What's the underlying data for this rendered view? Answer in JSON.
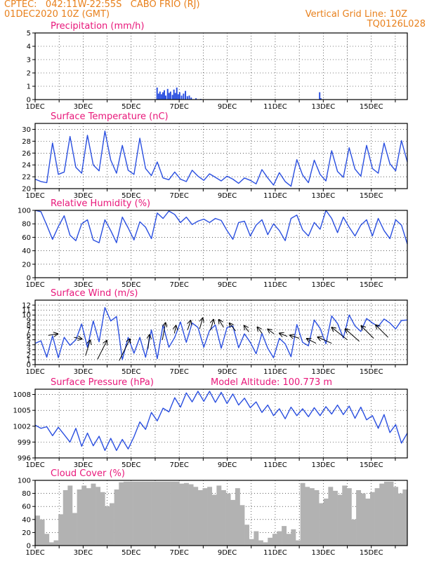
{
  "header": {
    "line1_left": "CPTEC:   042:11W-22:55S   CABO FRIO (RJ)",
    "line2_left": "01DEC2020 10Z (GMT)",
    "line2_right": "Vertical Grid Line: 10Z",
    "line3_right": "TQ0126L028",
    "model_altitude": "Model Altitude: 100.773 m"
  },
  "colors": {
    "line": "#2a4fe0",
    "bar": "#2a4fe0",
    "title": "#e8177a",
    "header": "#e8801c",
    "cloud": "#b2b2b2",
    "arrow": "#000000"
  },
  "x_tick_labels": [
    "1DEC",
    "3DEC",
    "5DEC",
    "7DEC",
    "9DEC",
    "11DEC",
    "13DEC",
    "15DEC"
  ],
  "chart_data": [
    {
      "type": "bar",
      "title": "Precipitation (mm/h)",
      "ylim": [
        0,
        5
      ],
      "yticks": [
        0,
        1,
        2,
        3,
        4,
        5
      ],
      "x_range_days": [
        0,
        15.5
      ],
      "events": [
        [
          5.08,
          0.9
        ],
        [
          5.14,
          0.45
        ],
        [
          5.2,
          0.6
        ],
        [
          5.26,
          0.4
        ],
        [
          5.32,
          0.55
        ],
        [
          5.38,
          0.7
        ],
        [
          5.44,
          0.3
        ],
        [
          5.52,
          0.8
        ],
        [
          5.58,
          0.5
        ],
        [
          5.64,
          0.6
        ],
        [
          5.72,
          0.35
        ],
        [
          5.78,
          0.75
        ],
        [
          5.84,
          0.5
        ],
        [
          5.9,
          0.9
        ],
        [
          5.96,
          0.4
        ],
        [
          6.02,
          0.55
        ],
        [
          6.1,
          0.3
        ],
        [
          6.18,
          0.45
        ],
        [
          6.26,
          0.65
        ],
        [
          6.34,
          0.25
        ],
        [
          6.42,
          0.3
        ],
        [
          6.5,
          0.15
        ],
        [
          6.7,
          0.1
        ],
        [
          6.9,
          0.05
        ],
        [
          11.85,
          0.55
        ],
        [
          11.9,
          0.1
        ]
      ]
    },
    {
      "type": "line",
      "title": "Surface Temperature (nC)",
      "ylim": [
        20,
        31
      ],
      "yticks": [
        20,
        22,
        24,
        26,
        28,
        30
      ],
      "series": [
        {
          "values": [
            21.6,
            21.2,
            21.0,
            27.7,
            22.4,
            22.8,
            28.8,
            23.6,
            22.6,
            29.0,
            24.0,
            23.0,
            29.7,
            24.8,
            22.6,
            27.3,
            23.1,
            22.4,
            28.5,
            23.4,
            22.2,
            24.5,
            21.8,
            21.5,
            22.8,
            21.6,
            21.2,
            23.1,
            22.1,
            21.4,
            22.5,
            21.9,
            21.3,
            22.1,
            21.6,
            20.9,
            21.8,
            21.4,
            20.8,
            23.2,
            21.8,
            20.6,
            22.7,
            21.2,
            20.4,
            24.9,
            22.3,
            21.0,
            24.8,
            22.4,
            21.3,
            26.4,
            22.9,
            21.9,
            26.9,
            23.3,
            22.1,
            27.3,
            23.4,
            22.6,
            27.7,
            24.2,
            23.0,
            28.1,
            24.5
          ]
        }
      ]
    },
    {
      "type": "line",
      "title": "Relative Humidity (%)",
      "ylim": [
        0,
        100
      ],
      "yticks": [
        0,
        20,
        40,
        60,
        80,
        100
      ],
      "series": [
        {
          "values": [
            100,
            98,
            78,
            57,
            76,
            92,
            63,
            55,
            80,
            86,
            56,
            52,
            86,
            70,
            52,
            90,
            74,
            56,
            83,
            75,
            58,
            96,
            88,
            99,
            94,
            82,
            90,
            79,
            84,
            87,
            82,
            88,
            85,
            70,
            57,
            82,
            84,
            62,
            78,
            86,
            64,
            80,
            70,
            55,
            88,
            93,
            71,
            62,
            82,
            72,
            100,
            88,
            67,
            90,
            75,
            62,
            78,
            86,
            62,
            88,
            70,
            58,
            86,
            78,
            50
          ]
        }
      ]
    },
    {
      "type": "line",
      "title": "Surface Wind (m/s)",
      "ylim": [
        0,
        13
      ],
      "yticks": [
        0,
        1,
        2,
        3,
        4,
        5,
        6,
        7,
        8,
        9,
        10,
        11,
        12
      ],
      "series": [
        {
          "values": [
            4.3,
            4.8,
            1.5,
            5.8,
            1.4,
            5.5,
            3.9,
            5.0,
            8.2,
            3.5,
            8.8,
            4.6,
            11.5,
            8.8,
            9.7,
            1.0,
            5.5,
            2.3,
            5.5,
            1.5,
            7.0,
            1.2,
            8.0,
            3.5,
            5.5,
            8.6,
            4.5,
            8.4,
            7.5,
            3.5,
            6.9,
            8.0,
            3.3,
            7.5,
            7.8,
            3.4,
            6.2,
            4.5,
            2.2,
            6.3,
            3.3,
            1.4,
            5.3,
            4.2,
            1.6,
            8.1,
            4.5,
            3.8,
            9.0,
            7.3,
            4.2,
            9.8,
            8.3,
            5.4,
            10.0,
            7.8,
            6.7,
            9.3,
            8.4,
            7.7,
            9.2,
            8.4,
            7.2,
            8.9,
            9.0
          ]
        }
      ],
      "vectors": [
        [
          0.55,
          5.9,
          0.6,
          0.1
        ],
        [
          1.62,
          5.5,
          0.5,
          -0.1
        ],
        [
          2.1,
          1.8,
          0.3,
          1.0
        ],
        [
          2.6,
          1.1,
          0.6,
          1.2
        ],
        [
          3.5,
          0.8,
          0.7,
          1.4
        ],
        [
          4.7,
          3.2,
          0.1,
          0.9
        ],
        [
          5.3,
          5.0,
          0.2,
          1.1
        ],
        [
          5.8,
          6.3,
          0.1,
          0.5
        ],
        [
          6.35,
          7.0,
          0.2,
          0.6
        ],
        [
          6.85,
          7.2,
          0.2,
          0.7
        ],
        [
          7.3,
          6.9,
          0.2,
          0.7
        ],
        [
          7.85,
          7.5,
          -0.3,
          0.5
        ],
        [
          8.35,
          6.8,
          -0.4,
          0.5
        ],
        [
          8.9,
          6.6,
          -0.3,
          0.4
        ],
        [
          9.45,
          6.3,
          -0.3,
          0.4
        ],
        [
          9.95,
          6.2,
          -0.4,
          0.3
        ],
        [
          10.5,
          5.7,
          -0.5,
          0.2
        ],
        [
          11.0,
          5.3,
          -0.6,
          0.2
        ],
        [
          11.7,
          4.3,
          -0.6,
          0.3
        ],
        [
          12.35,
          4.3,
          -0.9,
          0.4
        ],
        [
          13.0,
          5.0,
          -1.0,
          0.8
        ],
        [
          13.5,
          4.7,
          -0.9,
          0.8
        ],
        [
          14.1,
          5.3,
          -0.8,
          0.8
        ],
        [
          14.7,
          5.5,
          -0.8,
          0.8
        ]
      ]
    },
    {
      "type": "line",
      "title": "Surface Pressure (hPa)",
      "ylim": [
        996,
        1009
      ],
      "yticks": [
        996,
        999,
        1002,
        1005,
        1008
      ],
      "series": [
        {
          "values": [
            1002.2,
            1001.6,
            1001.9,
            1000.2,
            1001.8,
            1000.4,
            999.0,
            1001.6,
            998.2,
            1000.7,
            998.3,
            1000.1,
            997.4,
            999.7,
            997.4,
            999.5,
            997.7,
            1000.0,
            1002.8,
            1001.4,
            1004.6,
            1003.0,
            1005.4,
            1004.7,
            1007.4,
            1005.6,
            1008.3,
            1006.6,
            1008.6,
            1006.7,
            1008.6,
            1006.5,
            1008.4,
            1006.3,
            1008.1,
            1006.0,
            1007.3,
            1005.5,
            1006.6,
            1004.6,
            1006.0,
            1004.0,
            1005.3,
            1003.4,
            1005.6,
            1004.0,
            1005.3,
            1003.8,
            1005.5,
            1004.0,
            1005.7,
            1004.3,
            1006.0,
            1004.2,
            1005.8,
            1003.5,
            1005.6,
            1003.2,
            1004.0,
            1001.6,
            1004.2,
            1000.8,
            1002.3,
            998.8,
            1000.7
          ]
        }
      ]
    },
    {
      "type": "area",
      "title": "Cloud Cover (%)",
      "ylim": [
        0,
        100
      ],
      "yticks": [
        0,
        20,
        40,
        60,
        80,
        100
      ],
      "values": [
        46,
        40,
        18,
        5,
        8,
        48,
        85,
        92,
        50,
        86,
        92,
        88,
        95,
        90,
        82,
        60,
        65,
        86,
        97,
        98,
        98,
        98,
        98,
        98,
        98,
        98,
        98,
        98,
        98,
        98,
        98,
        95,
        96,
        94,
        90,
        85,
        88,
        90,
        78,
        92,
        85,
        80,
        70,
        88,
        62,
        32,
        10,
        22,
        8,
        5,
        12,
        18,
        22,
        30,
        18,
        25,
        8,
        96,
        90,
        88,
        85,
        65,
        72,
        90,
        84,
        78,
        92,
        88,
        40,
        85,
        80,
        72,
        82,
        88,
        95,
        98,
        98,
        90,
        80,
        86
      ]
    }
  ]
}
